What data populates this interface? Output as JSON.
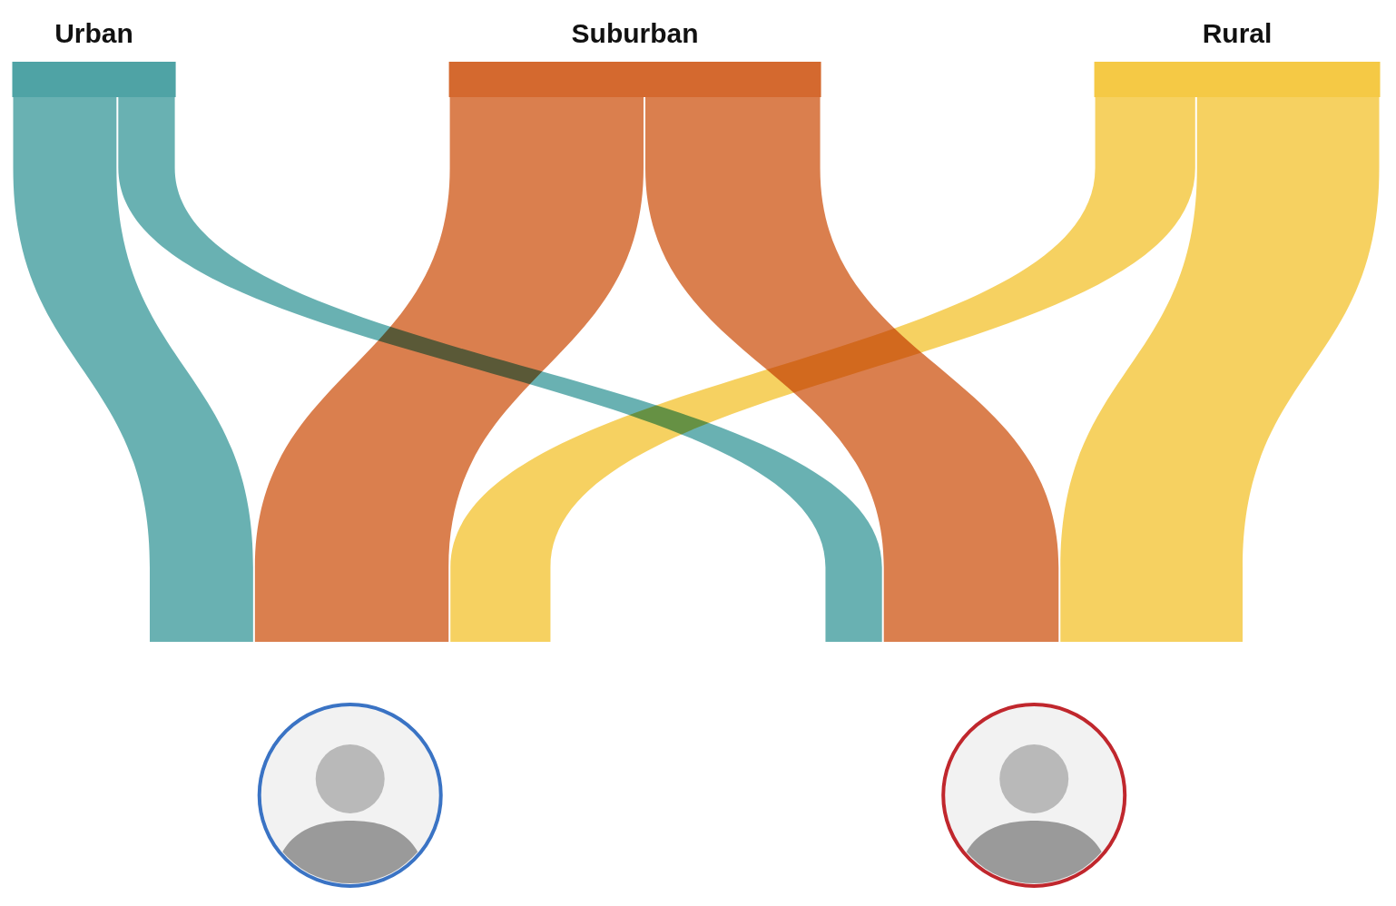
{
  "chart_data": {
    "type": "sankey",
    "nodes": [
      {
        "label": "Urban",
        "color": "#4fa3a5"
      },
      {
        "label": "Suburban",
        "color": "#d4692f"
      },
      {
        "label": "Rural",
        "color": "#f5c945"
      },
      {
        "color": "#3a73c4"
      },
      {
        "color": "#c0272d"
      }
    ],
    "links": [
      {
        "source": 0,
        "target": 3,
        "value": 12.8
      },
      {
        "source": 0,
        "target": 4,
        "value": 7.1
      },
      {
        "source": 1,
        "target": 3,
        "value": 23.8
      },
      {
        "source": 1,
        "target": 4,
        "value": 21.5
      },
      {
        "source": 2,
        "target": 3,
        "value": 12.4
      },
      {
        "source": 2,
        "target": 4,
        "value": 22.4
      }
    ]
  }
}
